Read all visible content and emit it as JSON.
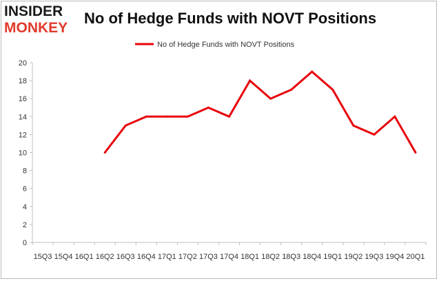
{
  "brand": {
    "line1": "INSIDER",
    "line2": "MONKEY"
  },
  "chart_data": {
    "type": "line",
    "title": "No of Hedge Funds with NOVT Positions",
    "xlabel": "",
    "ylabel": "",
    "categories": [
      "15Q3",
      "15Q4",
      "16Q1",
      "16Q2",
      "16Q3",
      "16Q4",
      "17Q1",
      "17Q2",
      "17Q3",
      "17Q4",
      "18Q1",
      "18Q2",
      "18Q3",
      "18Q4",
      "19Q1",
      "19Q2",
      "19Q3",
      "19Q4",
      "20Q1"
    ],
    "series": [
      {
        "name": "No of Hedge Funds with NOVT Positions",
        "values": [
          null,
          null,
          null,
          10,
          13,
          14,
          14,
          14,
          15,
          14,
          18,
          16,
          17,
          19,
          17,
          13,
          12,
          14,
          10
        ]
      }
    ],
    "ylim": [
      0,
      20
    ],
    "yticks": [
      0,
      2,
      4,
      6,
      8,
      10,
      12,
      14,
      16,
      18,
      20
    ],
    "grid": false,
    "legend": "top-center",
    "colors": {
      "line": "#e8000b",
      "axis": "#bfbfbf"
    }
  }
}
